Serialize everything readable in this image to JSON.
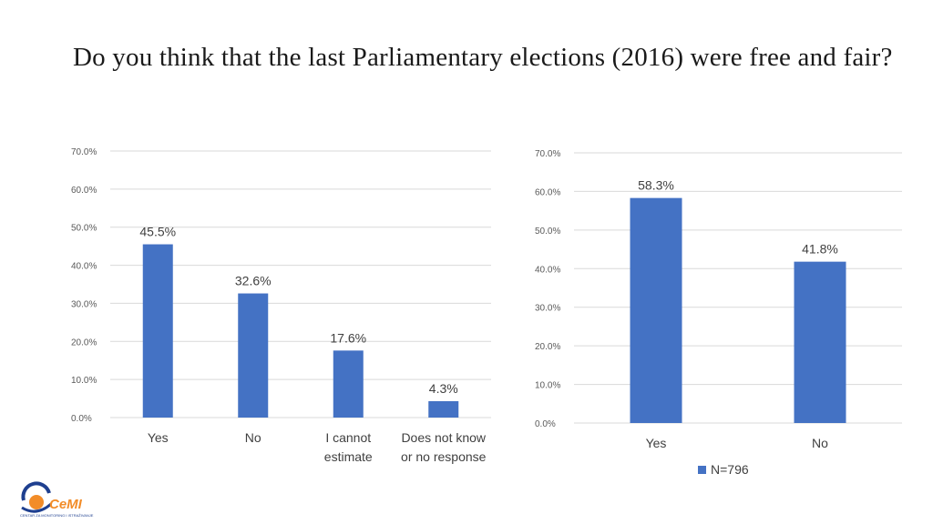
{
  "title": "Do you think that the last Parliamentary elections (2016) were free and fair?",
  "chart_data": [
    {
      "type": "bar",
      "categories": [
        [
          "Yes"
        ],
        [
          "No"
        ],
        [
          "I cannot",
          "estimate"
        ],
        [
          "Does not know",
          "or no response"
        ]
      ],
      "values": [
        45.5,
        32.6,
        17.6,
        4.3
      ],
      "data_labels": [
        "45.5%",
        "32.6%",
        "17.6%",
        "4.3%"
      ],
      "yticks": [
        "0.0%",
        "10.0%",
        "20.0%",
        "30.0%",
        "40.0%",
        "50.0%",
        "60.0%",
        "70.0%"
      ],
      "ylim": [
        0,
        70
      ],
      "grid": true,
      "color": "#4472c4"
    },
    {
      "type": "bar",
      "categories": [
        [
          "Yes"
        ],
        [
          "No"
        ]
      ],
      "values": [
        58.3,
        41.8
      ],
      "data_labels": [
        "58.3%",
        "41.8%"
      ],
      "yticks": [
        "0.0%",
        "10.0%",
        "20.0%",
        "30.0%",
        "40.0%",
        "50.0%",
        "60.0%",
        "70.0%"
      ],
      "ylim": [
        0,
        70
      ],
      "grid": true,
      "legend": {
        "label": "N=796",
        "position": "bottom"
      },
      "color": "#4472c4"
    }
  ],
  "logo": {
    "text": "CeMI",
    "subtitle": "CENTAR ZA MONITORING I ISTRAŽIVANJE",
    "colors": {
      "orange": "#f28c28",
      "blue": "#1e3f8f"
    }
  }
}
